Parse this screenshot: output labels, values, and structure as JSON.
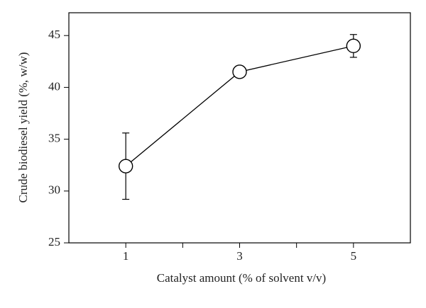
{
  "chart_data": {
    "type": "line",
    "x_label": "Catalyst amount (% of solvent v/v)",
    "y_label": "Crude biodiesel yield (%, w/w)",
    "x": [
      1,
      3,
      5
    ],
    "series": [
      {
        "color": "#000000",
        "values": [
          32.4,
          41.5,
          44.0
        ],
        "errors": [
          3.2,
          0.3,
          1.1
        ]
      }
    ],
    "xlim": [
      0,
      6
    ],
    "xticks": [
      1,
      3,
      5
    ],
    "ylim": [
      25,
      47.2
    ],
    "yticks": [
      25,
      30,
      35,
      40,
      45
    ],
    "grid": false
  }
}
